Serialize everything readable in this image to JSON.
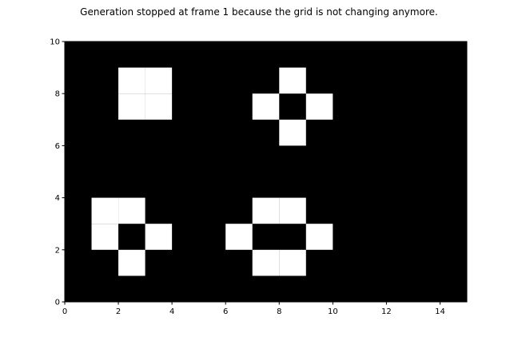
{
  "title": "Generation stopped at frame 1 because the grid is not changing anymore.",
  "colors": {
    "background": "#000000",
    "live_cell": "#ffffff",
    "axis": "#000000"
  },
  "chart_data": {
    "type": "heatmap",
    "title": "Generation stopped at frame 1 because the grid is not changing anymore.",
    "xlabel": "",
    "ylabel": "",
    "xlim": [
      0,
      15
    ],
    "ylim": [
      0,
      10
    ],
    "xticks": [
      0,
      2,
      4,
      6,
      8,
      10,
      12,
      14
    ],
    "yticks": [
      0,
      2,
      4,
      6,
      8,
      10
    ],
    "grid": false,
    "cell_values": [
      "dead",
      "live"
    ],
    "live_cells": [
      {
        "x": 2,
        "y": 8
      },
      {
        "x": 3,
        "y": 8
      },
      {
        "x": 2,
        "y": 7
      },
      {
        "x": 3,
        "y": 7
      },
      {
        "x": 8,
        "y": 8
      },
      {
        "x": 7,
        "y": 7
      },
      {
        "x": 9,
        "y": 7
      },
      {
        "x": 8,
        "y": 6
      },
      {
        "x": 1,
        "y": 3
      },
      {
        "x": 2,
        "y": 3
      },
      {
        "x": 1,
        "y": 2
      },
      {
        "x": 3,
        "y": 2
      },
      {
        "x": 2,
        "y": 1
      },
      {
        "x": 7,
        "y": 3
      },
      {
        "x": 8,
        "y": 3
      },
      {
        "x": 6,
        "y": 2
      },
      {
        "x": 9,
        "y": 2
      },
      {
        "x": 7,
        "y": 1
      },
      {
        "x": 8,
        "y": 1
      }
    ]
  }
}
